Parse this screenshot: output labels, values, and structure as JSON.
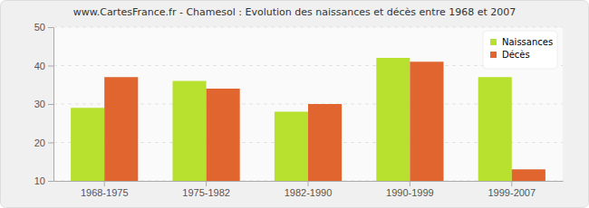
{
  "chart_data": {
    "type": "bar",
    "title": "www.CartesFrance.fr - Chamesol : Evolution des naissances et décès entre 1968 et 2007",
    "categories": [
      "1968-1975",
      "1975-1982",
      "1982-1990",
      "1990-1999",
      "1999-2007"
    ],
    "series": [
      {
        "name": "Naissances",
        "color": "#b8e02e",
        "values": [
          29,
          36,
          28,
          42,
          37
        ]
      },
      {
        "name": "Décès",
        "color": "#e0652f",
        "values": [
          37,
          34,
          30,
          41,
          13
        ]
      }
    ],
    "ylim": [
      10,
      50
    ],
    "yticks": [
      10,
      20,
      30,
      40,
      50
    ],
    "grid": true,
    "legend": "top-right"
  }
}
